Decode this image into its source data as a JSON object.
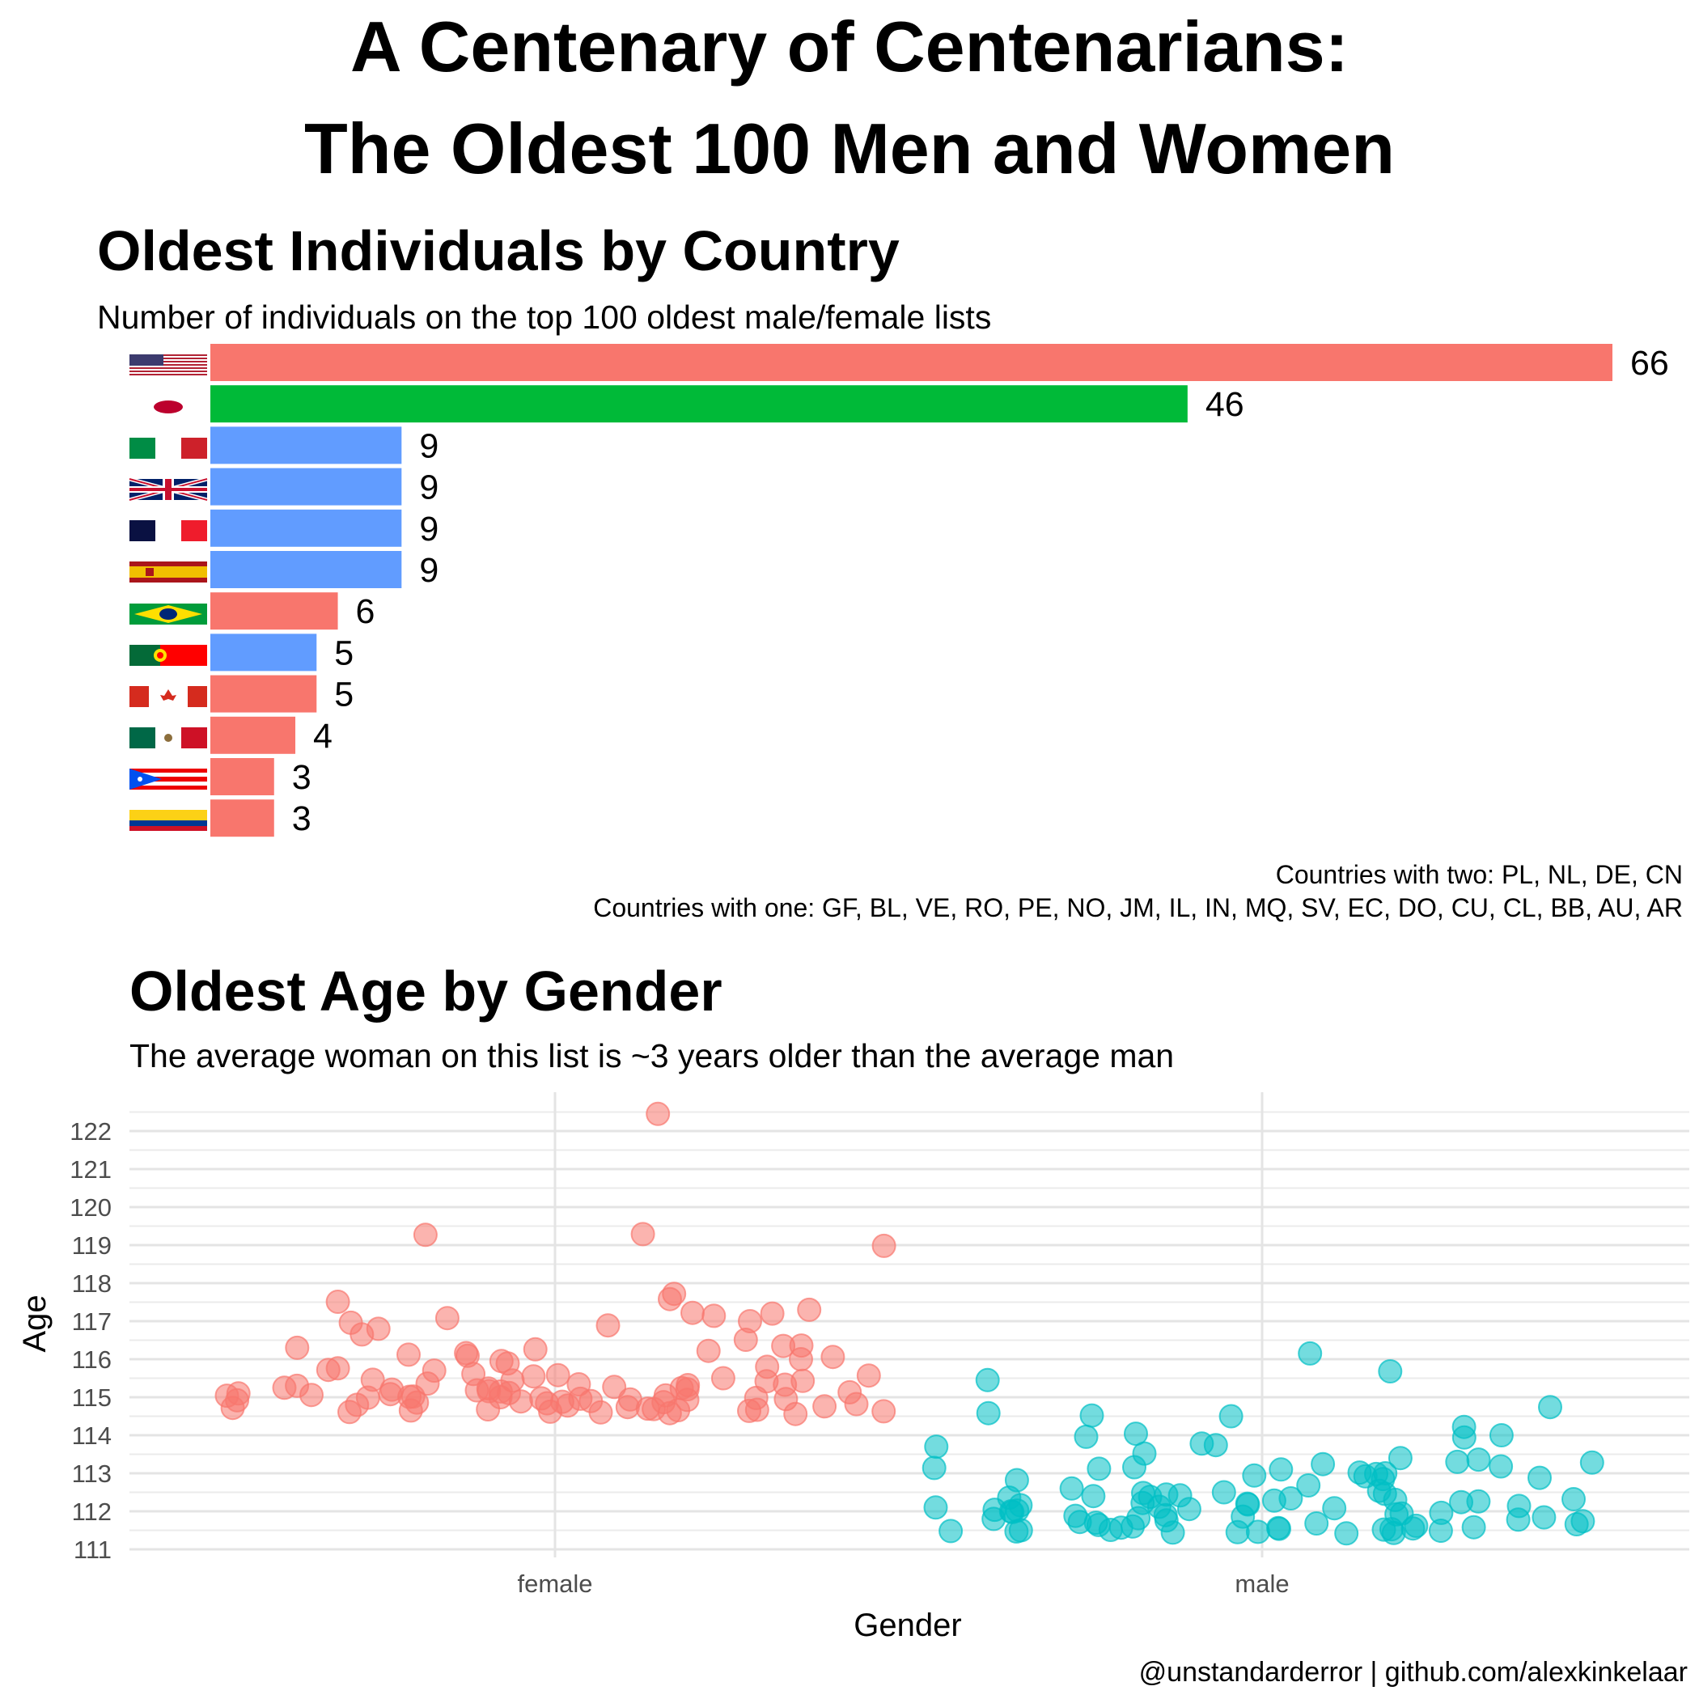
{
  "title_line1": "A Centenary of Centenarians:",
  "title_line2": "The Oldest 100 Men and Women",
  "caption": "@unstandarderror | github.com/alexkinkelaar",
  "chart_data": [
    {
      "type": "bar",
      "orientation": "horizontal",
      "title": "Oldest Individuals by Country",
      "subtitle": "Number of individuals on the top 100 oldest male/female lists",
      "categories": [
        "US",
        "JP",
        "IT",
        "GB",
        "FR",
        "ES",
        "BR",
        "PT",
        "CA",
        "MX",
        "PR",
        "CO"
      ],
      "category_icons": [
        "flag-us",
        "flag-jp",
        "flag-it",
        "flag-gb",
        "flag-fr",
        "flag-es",
        "flag-br",
        "flag-pt",
        "flag-ca",
        "flag-mx",
        "flag-pr",
        "flag-co"
      ],
      "values": [
        66,
        46,
        9,
        9,
        9,
        9,
        6,
        5,
        5,
        4,
        3,
        3
      ],
      "colors": [
        "#F8766D",
        "#00BA38",
        "#619CFF",
        "#619CFF",
        "#619CFF",
        "#619CFF",
        "#F8766D",
        "#619CFF",
        "#F8766D",
        "#F8766D",
        "#F8766D",
        "#F8766D"
      ],
      "notes": [
        "Countries with two: PL, NL, DE, CN",
        "Countries with one: GF, BL, VE, RO, PE, NO, JM, IL, IN, MQ, SV, EC, DO, CU, CL, BB, AU, AR"
      ]
    },
    {
      "type": "scatter",
      "jitter": true,
      "title": "Oldest Age by Gender",
      "subtitle": "The average woman on this list is ~3 years older than the average man",
      "xlabel": "Gender",
      "ylabel": "Age",
      "categories": [
        "female",
        "male"
      ],
      "ylim": [
        111,
        122
      ],
      "yticks": [
        111,
        112,
        113,
        114,
        115,
        116,
        117,
        118,
        119,
        120,
        121,
        122
      ],
      "grid": true,
      "series": [
        {
          "values": [
            122.45,
            119.27,
            119.29,
            118.98,
            117.72,
            117.58,
            117.51,
            117.3,
            117.22,
            117.2,
            117.14,
            117.08,
            117.0,
            116.96,
            116.89,
            116.8,
            116.65,
            116.51,
            116.36,
            116.35,
            116.3,
            116.26,
            116.22,
            116.16,
            116.12,
            116.09,
            116.06,
            116.0,
            115.95,
            115.89,
            115.8,
            115.76,
            115.72,
            115.7,
            115.61,
            115.58,
            115.57,
            115.55,
            115.5,
            115.46,
            115.44,
            115.43,
            115.42,
            115.36,
            115.34,
            115.33,
            115.32,
            115.3,
            115.27,
            115.25,
            115.24,
            115.23,
            115.21,
            115.2,
            115.18,
            115.16,
            115.15,
            115.13,
            115.11,
            115.1,
            115.08,
            115.06,
            115.05,
            115.04,
            115.02,
            115.01,
            115.0,
            114.99,
            114.98,
            114.97,
            114.96,
            114.95,
            114.94,
            114.93,
            114.92,
            114.9,
            114.89,
            114.88,
            114.87,
            114.86,
            114.84,
            114.82,
            114.8,
            114.78,
            114.76,
            114.74,
            114.72,
            114.7,
            114.69,
            114.68,
            114.67,
            114.66,
            114.65,
            114.64,
            114.63,
            114.62,
            114.61,
            114.6,
            114.58,
            114.56
          ],
          "color": "#F8766D"
        },
        {
          "values": [
            116.15,
            115.68,
            115.45,
            114.74,
            114.58,
            114.52,
            114.5,
            114.22,
            114.04,
            114.0,
            113.96,
            113.94,
            113.78,
            113.74,
            113.7,
            113.52,
            113.4,
            113.36,
            113.3,
            113.28,
            113.24,
            113.18,
            113.16,
            113.14,
            113.12,
            113.1,
            113.02,
            113.0,
            112.98,
            112.94,
            112.92,
            112.88,
            112.85,
            112.82,
            112.68,
            112.6,
            112.54,
            112.5,
            112.48,
            112.46,
            112.44,
            112.42,
            112.4,
            112.38,
            112.36,
            112.34,
            112.32,
            112.3,
            112.28,
            112.26,
            112.24,
            112.22,
            112.2,
            112.18,
            112.16,
            112.14,
            112.12,
            112.1,
            112.08,
            112.06,
            112.04,
            112.02,
            112.0,
            111.98,
            111.96,
            111.94,
            111.92,
            111.9,
            111.88,
            111.86,
            111.84,
            111.82,
            111.8,
            111.78,
            111.76,
            111.74,
            111.72,
            111.7,
            111.68,
            111.66,
            111.64,
            111.62,
            111.6,
            111.58,
            111.57,
            111.56,
            111.55,
            111.54,
            111.53,
            111.52,
            111.51,
            111.5,
            111.49,
            111.48,
            111.47,
            111.46,
            111.45,
            111.44,
            111.43,
            111.42
          ],
          "color": "#00BFC4"
        }
      ]
    }
  ]
}
